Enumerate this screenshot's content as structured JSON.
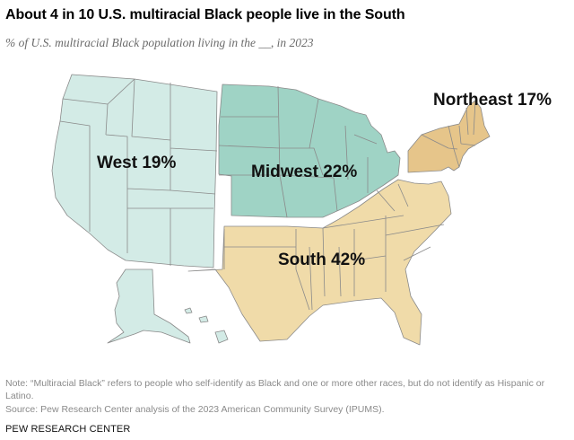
{
  "header": {
    "title": "About 4 in 10 U.S. multiracial Black people live in the South",
    "subtitle": "% of U.S. multiracial Black population living in the __, in 2023"
  },
  "map": {
    "regions": [
      {
        "name": "West",
        "value": 19,
        "label": "West 19%",
        "color": "#d3ebe6"
      },
      {
        "name": "Midwest",
        "value": 22,
        "label": "Midwest 22%",
        "color": "#9fd3c5"
      },
      {
        "name": "Northeast",
        "value": 17,
        "label": "Northeast 17%",
        "color": "#e6c58a"
      },
      {
        "name": "South",
        "value": 42,
        "label": "South 42%",
        "color": "#f0dba9"
      }
    ],
    "border_color": "#7a7a7a"
  },
  "footer": {
    "note": "Note: “Multiracial Black” refers to people who self-identify as Black and one or more other races, but do not identify as Hispanic or Latino.",
    "source": "Source: Pew Research Center analysis of the 2023 American Community Survey (IPUMS).",
    "brand": "PEW RESEARCH CENTER"
  }
}
